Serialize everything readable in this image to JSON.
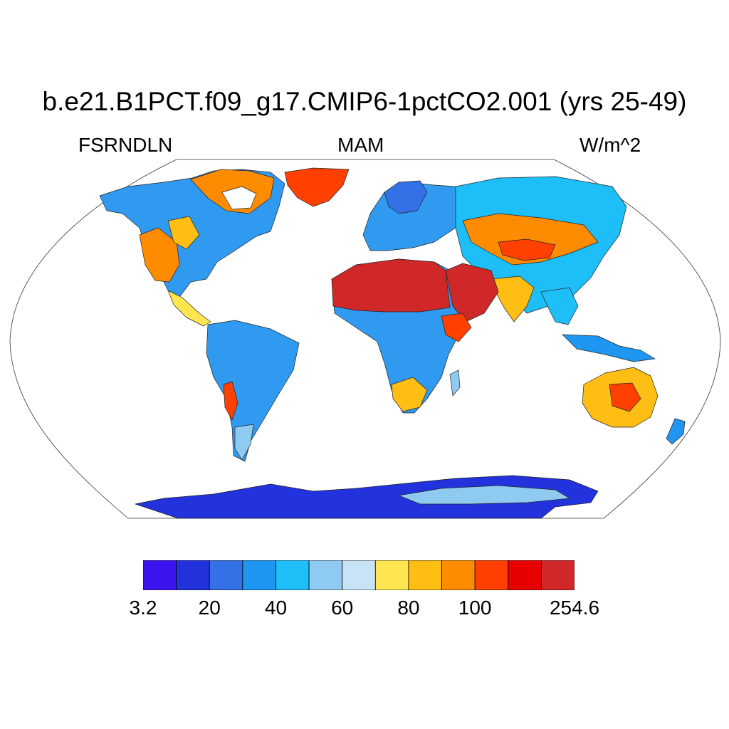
{
  "title": "b.e21.B1PCT.f09_g17.CMIP6-1pctCO2.001 (yrs 25-49)",
  "variable": "FSRNDLN",
  "season": "MAM",
  "units": "W/m^2",
  "chart_data": {
    "type": "heatmap",
    "projection": "Robinson",
    "colorbar": {
      "colors": [
        "#3c14f0",
        "#2233dd",
        "#3470e6",
        "#1f96f2",
        "#1ebef8",
        "#8fcbf0",
        "#c8e3f6",
        "#ffe650",
        "#ffbe14",
        "#ff8c00",
        "#ff4000",
        "#e60000",
        "#d02828"
      ],
      "tick_labels": [
        {
          "text": "3.2",
          "boundary_index": 0
        },
        {
          "text": "20",
          "boundary_index": 2
        },
        {
          "text": "40",
          "boundary_index": 4
        },
        {
          "text": "60",
          "boundary_index": 6
        },
        {
          "text": "80",
          "boundary_index": 8
        },
        {
          "text": "100",
          "boundary_index": 10
        },
        {
          "text": "254.6",
          "boundary_index": 13
        }
      ]
    },
    "regions": [
      {
        "name": "Sahara / Arabia",
        "value_class": 12
      },
      {
        "name": "Greenland",
        "value_class": 11
      },
      {
        "name": "Central Asia deserts",
        "value_class": 10
      },
      {
        "name": "Australia interior",
        "value_class": 10
      },
      {
        "name": "Amazon / Africa tropics",
        "value_class": 4
      },
      {
        "name": "Eurasia / N America boreal",
        "value_class": 3
      },
      {
        "name": "Antarctica",
        "value_class": 1
      }
    ]
  }
}
